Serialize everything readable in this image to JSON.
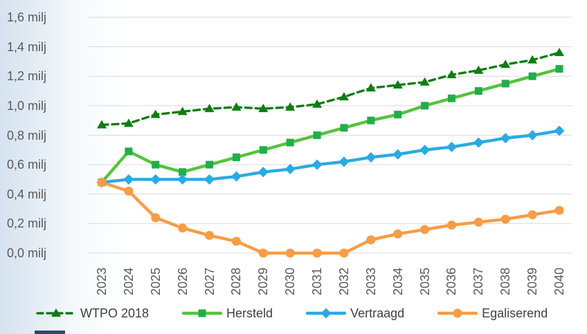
{
  "chart_data": {
    "type": "line",
    "title": "",
    "xlabel": "",
    "ylabel": "",
    "unit_suffix": " milj",
    "x": [
      "2023",
      "2024",
      "2025",
      "2026",
      "2027",
      "2028",
      "2029",
      "2030",
      "2031",
      "2032",
      "2033",
      "2034",
      "2035",
      "2036",
      "2037",
      "2038",
      "2039",
      "2040"
    ],
    "ylim": [
      0,
      1.6
    ],
    "ytick_step": 0.2,
    "ytick_labels": [
      "0,0 milj",
      "0,2 milj",
      "0,4 milj",
      "0,6 milj",
      "0,8 milj",
      "1,0 milj",
      "1,2 milj",
      "1,4 milj",
      "1,6 milj"
    ],
    "grid": true,
    "gridline_color": "#d9d9d9",
    "legend_position": "bottom",
    "series": [
      {
        "name": "WTPO 2018",
        "marker": "triangle",
        "line_style": "dashed",
        "color": "#0e7d12",
        "marker_color": "#0e7d12",
        "values": [
          0.87,
          0.88,
          0.94,
          0.96,
          0.98,
          0.99,
          0.98,
          0.99,
          1.01,
          1.06,
          1.12,
          1.14,
          1.16,
          1.21,
          1.24,
          1.28,
          1.31,
          1.36
        ]
      },
      {
        "name": "Hersteld",
        "marker": "square",
        "line_style": "solid",
        "color": "#55c33d",
        "marker_color": "#22ad4b",
        "values": [
          0.48,
          0.69,
          0.6,
          0.55,
          0.6,
          0.65,
          0.7,
          0.75,
          0.8,
          0.85,
          0.9,
          0.94,
          1.0,
          1.05,
          1.1,
          1.15,
          1.2,
          1.25
        ]
      },
      {
        "name": "Vertraagd",
        "marker": "diamond",
        "line_style": "solid",
        "color": "#29abe2",
        "marker_color": "#29abe2",
        "values": [
          0.48,
          0.5,
          0.5,
          0.5,
          0.5,
          0.52,
          0.55,
          0.57,
          0.6,
          0.62,
          0.65,
          0.67,
          0.7,
          0.72,
          0.75,
          0.78,
          0.8,
          0.83
        ]
      },
      {
        "name": "Egaliserend",
        "marker": "circle",
        "line_style": "solid",
        "color": "#f89c45",
        "marker_color": "#f89c45",
        "values": [
          0.48,
          0.42,
          0.24,
          0.17,
          0.12,
          0.08,
          0.0,
          0.0,
          0.0,
          0.0,
          0.09,
          0.13,
          0.16,
          0.19,
          0.21,
          0.23,
          0.26,
          0.29
        ]
      }
    ]
  },
  "decor": {
    "accent_bar_color": "#2e4a72",
    "background_tint": "#d5e2ef"
  }
}
